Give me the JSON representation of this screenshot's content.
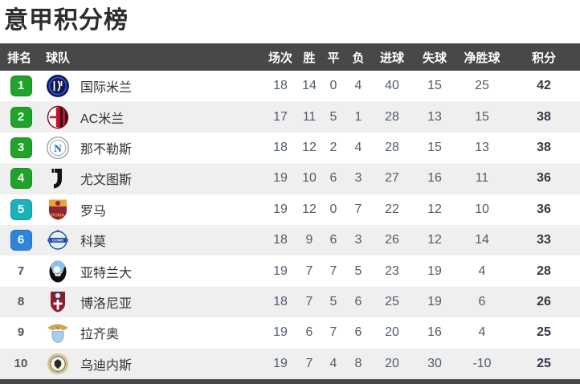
{
  "page": {
    "title": "意甲积分榜"
  },
  "colors": {
    "header_bg": "#484848",
    "row_alt_bg": "#f0eff0",
    "badge_green": "#1fa32a",
    "badge_teal": "#18b2b8",
    "badge_blue": "#2e84d9",
    "points_text": "#2c3a48",
    "number_text": "#4e5d6c"
  },
  "table": {
    "headers": {
      "rank": "排名",
      "team": "球队",
      "played": "场次",
      "win": "胜",
      "draw": "平",
      "loss": "负",
      "gf": "进球",
      "ga": "失球",
      "gd": "净胜球",
      "pts": "积分"
    },
    "rows": [
      {
        "rank": "1",
        "badge": "green",
        "logo": "inter",
        "logo_name": "inter-milan-logo",
        "team": "国际米兰",
        "played": "18",
        "win": "14",
        "draw": "0",
        "loss": "4",
        "gf": "40",
        "ga": "15",
        "gd": "25",
        "pts": "42"
      },
      {
        "rank": "2",
        "badge": "green",
        "logo": "acmilan",
        "logo_name": "ac-milan-logo",
        "team": "AC米兰",
        "played": "17",
        "win": "11",
        "draw": "5",
        "loss": "1",
        "gf": "28",
        "ga": "13",
        "gd": "15",
        "pts": "38"
      },
      {
        "rank": "3",
        "badge": "green",
        "logo": "napoli",
        "logo_name": "napoli-logo",
        "team": "那不勒斯",
        "played": "18",
        "win": "12",
        "draw": "2",
        "loss": "4",
        "gf": "28",
        "ga": "15",
        "gd": "13",
        "pts": "38"
      },
      {
        "rank": "4",
        "badge": "green",
        "logo": "juventus",
        "logo_name": "juventus-logo",
        "team": "尤文图斯",
        "played": "19",
        "win": "10",
        "draw": "6",
        "loss": "3",
        "gf": "27",
        "ga": "16",
        "gd": "11",
        "pts": "36"
      },
      {
        "rank": "5",
        "badge": "teal",
        "logo": "roma",
        "logo_name": "roma-logo",
        "team": "罗马",
        "played": "19",
        "win": "12",
        "draw": "0",
        "loss": "7",
        "gf": "22",
        "ga": "12",
        "gd": "10",
        "pts": "36"
      },
      {
        "rank": "6",
        "badge": "blue",
        "logo": "como",
        "logo_name": "como-logo",
        "team": "科莫",
        "played": "18",
        "win": "9",
        "draw": "6",
        "loss": "3",
        "gf": "26",
        "ga": "12",
        "gd": "14",
        "pts": "33"
      },
      {
        "rank": "7",
        "badge": "none",
        "logo": "atalanta",
        "logo_name": "atalanta-logo",
        "team": "亚特兰大",
        "played": "19",
        "win": "7",
        "draw": "7",
        "loss": "5",
        "gf": "23",
        "ga": "19",
        "gd": "4",
        "pts": "28"
      },
      {
        "rank": "8",
        "badge": "none",
        "logo": "bologna",
        "logo_name": "bologna-logo",
        "team": "博洛尼亚",
        "played": "18",
        "win": "7",
        "draw": "5",
        "loss": "6",
        "gf": "25",
        "ga": "19",
        "gd": "6",
        "pts": "26"
      },
      {
        "rank": "9",
        "badge": "none",
        "logo": "lazio",
        "logo_name": "lazio-logo",
        "team": "拉齐奥",
        "played": "19",
        "win": "6",
        "draw": "7",
        "loss": "6",
        "gf": "20",
        "ga": "16",
        "gd": "4",
        "pts": "25"
      },
      {
        "rank": "10",
        "badge": "none",
        "logo": "udinese",
        "logo_name": "udinese-logo",
        "team": "乌迪内斯",
        "played": "19",
        "win": "7",
        "draw": "4",
        "loss": "8",
        "gf": "20",
        "ga": "30",
        "gd": "-10",
        "pts": "25"
      }
    ]
  }
}
